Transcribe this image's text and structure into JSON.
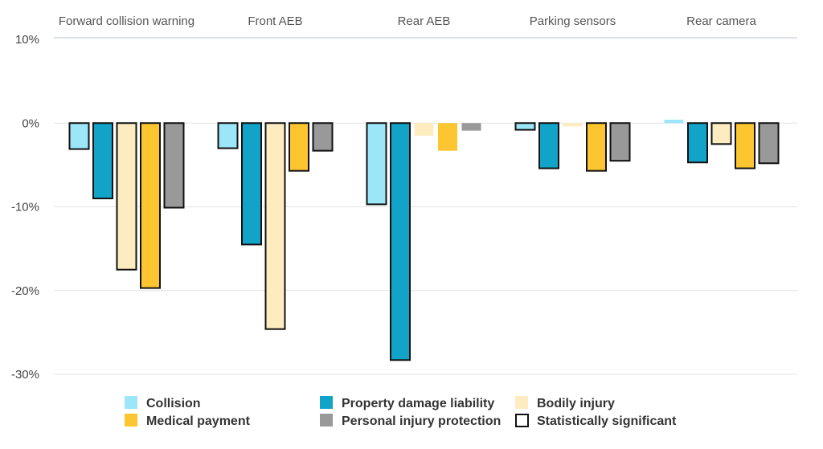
{
  "chart_data": {
    "type": "bar",
    "categories": [
      "Forward collision warning",
      "Front AEB",
      "Rear AEB",
      "Parking sensors",
      "Rear camera"
    ],
    "y_unit": "%",
    "ylim": [
      -30,
      10
    ],
    "y_ticks": [
      10,
      0,
      -10,
      -20,
      -30
    ],
    "y_tick_labels": [
      "10%",
      "0%",
      "-10%",
      "-20%",
      "-30%"
    ],
    "grid": true,
    "legend_position": "bottom",
    "series": [
      {
        "name": "Collision",
        "color": "#9be7f9",
        "values": [
          -3.1,
          -3.0,
          -9.7,
          -0.8,
          0.4
        ],
        "significant": [
          true,
          true,
          true,
          true,
          false
        ]
      },
      {
        "name": "Property damage liability",
        "color": "#12a3c9",
        "values": [
          -9.0,
          -14.5,
          -28.3,
          -5.4,
          -4.7
        ],
        "significant": [
          true,
          true,
          true,
          true,
          true
        ]
      },
      {
        "name": "Bodily injury",
        "color": "#fdecc0",
        "values": [
          -17.5,
          -24.6,
          -1.5,
          -0.4,
          -2.5
        ],
        "significant": [
          true,
          true,
          false,
          false,
          true
        ]
      },
      {
        "name": "Medical payment",
        "color": "#fdc630",
        "values": [
          -19.7,
          -5.7,
          -3.3,
          -5.7,
          -5.4
        ],
        "significant": [
          true,
          true,
          false,
          true,
          true
        ]
      },
      {
        "name": "Personal injury protection",
        "color": "#999999",
        "values": [
          -10.1,
          -3.3,
          -0.9,
          -4.5,
          -4.8
        ],
        "significant": [
          true,
          true,
          false,
          true,
          true
        ]
      }
    ],
    "legend": {
      "significant_label": "Statistically significant"
    }
  }
}
